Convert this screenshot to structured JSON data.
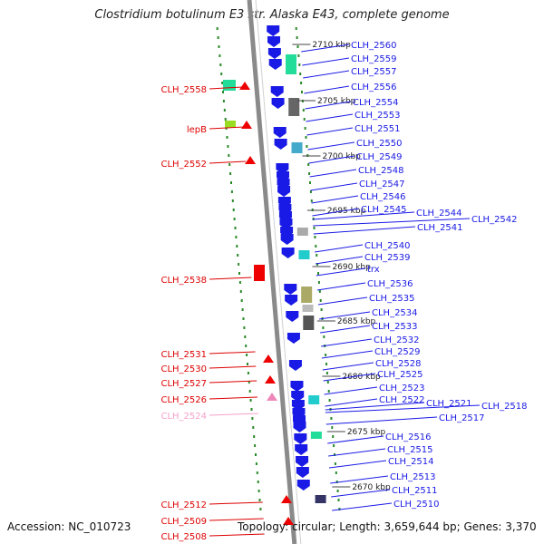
{
  "title": "Clostridium botulinum E3 str. Alaska E43, complete genome",
  "accession": "Accession: NC_010723",
  "summary": "Topology: circular; Length: 3,659,644 bp; Genes: 3,370",
  "colors": {
    "forward_gene": "#1a1ae6",
    "reverse_gene": "#ee0000",
    "pseudo_gene": "#ee88bb",
    "backbone": "#8a8a8a",
    "dots": "#2a8a2a",
    "kbp_text": "#222222"
  },
  "kbp_marks": [
    "2710 kbp",
    "2705 kbp",
    "2700 kbp",
    "2695 kbp",
    "2690 kbp",
    "2685 kbp",
    "2680 kbp",
    "2675 kbp",
    "2670 kbp"
  ],
  "left_labels": [
    {
      "text": "CLH_2558",
      "color": "#dd0000"
    },
    {
      "text": "lepB",
      "color": "#dd0000"
    },
    {
      "text": "CLH_2552",
      "color": "#dd0000"
    },
    {
      "text": "CLH_2538",
      "color": "#dd0000"
    },
    {
      "text": "CLH_2531",
      "color": "#dd0000"
    },
    {
      "text": "CLH_2530",
      "color": "#dd0000"
    },
    {
      "text": "CLH_2527",
      "color": "#dd0000"
    },
    {
      "text": "CLH_2526",
      "color": "#dd0000"
    },
    {
      "text": "CLH_2524",
      "color": "#f4a0c8"
    },
    {
      "text": "CLH_2512",
      "color": "#dd0000"
    },
    {
      "text": "CLH_2509",
      "color": "#dd0000"
    },
    {
      "text": "CLH_2508",
      "color": "#dd0000"
    }
  ],
  "right_labels": [
    "CLH_2560",
    "CLH_2559",
    "CLH_2557",
    "CLH_2556",
    "CLH_2554",
    "CLH_2553",
    "CLH_2551",
    "CLH_2550",
    "CLH_2549",
    "CLH_2548",
    "CLH_2547",
    "CLH_2546",
    "CLH_2545",
    "CLH_2544",
    "CLH_2542",
    "CLH_2541",
    "CLH_2540",
    "CLH_2539",
    "trx",
    "CLH_2536",
    "CLH_2535",
    "CLH_2534",
    "CLH_2533",
    "CLH_2532",
    "CLH_2529",
    "CLH_2528",
    "CLH_2525",
    "CLH_2523",
    "CLH_2522",
    "CLH_2521",
    "CLH_2518",
    "CLH_2517",
    "CLH_2516",
    "CLH_2515",
    "CLH_2514",
    "CLH_2513",
    "CLH_2511",
    "CLH_2510"
  ]
}
